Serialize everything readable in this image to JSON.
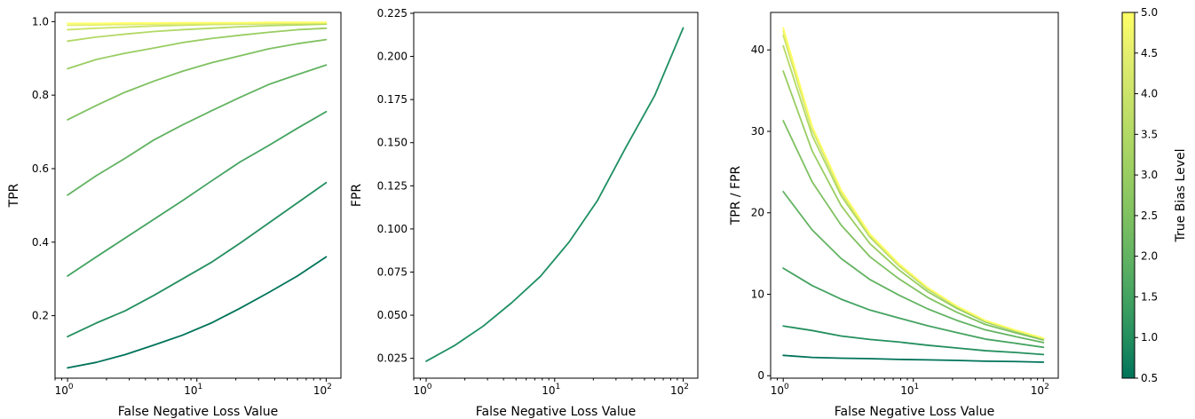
{
  "figure": {
    "colorbar": {
      "label": "True Bias Level",
      "min": 0.5,
      "max": 5.0,
      "ticks": [
        0.5,
        1.0,
        1.5,
        2.0,
        2.5,
        3.0,
        3.5,
        4.0,
        4.5,
        5.0
      ],
      "tick_labels": [
        "0.5",
        "1.0",
        "1.5",
        "2.0",
        "2.5",
        "3.0",
        "3.5",
        "4.0",
        "4.5",
        "5.0"
      ],
      "colormap": [
        "#00735a",
        "#248f5f",
        "#44a361",
        "#63b362",
        "#7fc161",
        "#99cd62",
        "#b2d965",
        "#cbe36a",
        "#e4ee6f",
        "#ffff66"
      ]
    }
  },
  "chart_data": [
    {
      "type": "line",
      "xscale": "log",
      "xlabel": "False Negative Loss Value",
      "ylabel": "TPR",
      "xlim": [
        0.8,
        130
      ],
      "ylim": [
        0.03,
        1.025
      ],
      "x": [
        1,
        1.668,
        2.783,
        4.642,
        7.743,
        12.92,
        21.54,
        35.94,
        59.95,
        100
      ],
      "x_ticks": [
        1,
        10,
        100
      ],
      "x_tick_labels": [
        "10^0",
        "10^1",
        "10^2"
      ],
      "y_ticks": [
        0.2,
        0.4,
        0.6,
        0.8,
        1.0
      ],
      "y_tick_labels": [
        "0.2",
        "0.4",
        "0.6",
        "0.8",
        "1.0"
      ],
      "series": [
        {
          "bias": 0.5,
          "values": [
            0.058,
            0.073,
            0.094,
            0.12,
            0.147,
            0.18,
            0.22,
            0.263,
            0.308,
            0.36
          ]
        },
        {
          "bias": 1.0,
          "values": [
            0.143,
            0.18,
            0.213,
            0.255,
            0.3,
            0.345,
            0.397,
            0.452,
            0.507,
            0.562
          ]
        },
        {
          "bias": 1.5,
          "values": [
            0.308,
            0.36,
            0.411,
            0.462,
            0.513,
            0.566,
            0.618,
            0.663,
            0.71,
            0.755
          ]
        },
        {
          "bias": 2.0,
          "values": [
            0.528,
            0.581,
            0.628,
            0.678,
            0.719,
            0.757,
            0.794,
            0.829,
            0.856,
            0.882
          ]
        },
        {
          "bias": 2.5,
          "values": [
            0.733,
            0.772,
            0.808,
            0.838,
            0.865,
            0.888,
            0.907,
            0.926,
            0.94,
            0.951
          ]
        },
        {
          "bias": 3.0,
          "values": [
            0.872,
            0.897,
            0.914,
            0.928,
            0.943,
            0.954,
            0.963,
            0.971,
            0.978,
            0.982
          ]
        },
        {
          "bias": 3.5,
          "values": [
            0.947,
            0.958,
            0.966,
            0.973,
            0.978,
            0.982,
            0.986,
            0.989,
            0.991,
            0.993
          ]
        },
        {
          "bias": 4.0,
          "values": [
            0.978,
            0.982,
            0.985,
            0.988,
            0.99,
            0.992,
            0.993,
            0.994,
            0.995,
            0.996
          ]
        },
        {
          "bias": 4.5,
          "values": [
            0.99,
            0.991,
            0.992,
            0.993,
            0.994,
            0.995,
            0.995,
            0.996,
            0.996,
            0.997
          ]
        },
        {
          "bias": 5.0,
          "values": [
            0.995,
            0.995,
            0.996,
            0.996,
            0.997,
            0.997,
            0.997,
            0.998,
            0.998,
            0.998
          ]
        }
      ]
    },
    {
      "type": "line",
      "xscale": "log",
      "xlabel": "False Negative Loss Value",
      "ylabel": "FPR",
      "xlim": [
        0.8,
        130
      ],
      "ylim": [
        0.0135,
        0.2255
      ],
      "x": [
        1,
        1.668,
        2.783,
        4.642,
        7.743,
        12.92,
        21.54,
        35.94,
        59.95,
        100
      ],
      "x_ticks": [
        1,
        10,
        100
      ],
      "x_tick_labels": [
        "10^0",
        "10^1",
        "10^2"
      ],
      "y_ticks": [
        0.025,
        0.05,
        0.075,
        0.1,
        0.125,
        0.15,
        0.175,
        0.2,
        0.225
      ],
      "y_tick_labels": [
        "0.025",
        "0.050",
        "0.075",
        "0.100",
        "0.125",
        "0.150",
        "0.175",
        "0.200",
        "0.225"
      ],
      "series": [
        {
          "values": [
            0.0233,
            0.0325,
            0.0437,
            0.0573,
            0.0725,
            0.0923,
            0.1165,
            0.1475,
            0.1772,
            0.2165
          ]
        }
      ]
    },
    {
      "type": "line",
      "xscale": "log",
      "xlabel": "False Negative Loss Value",
      "ylabel": "TPR / FPR",
      "xlim": [
        0.8,
        130
      ],
      "ylim": [
        -0.3,
        44.6
      ],
      "x": [
        1,
        1.668,
        2.783,
        4.642,
        7.743,
        12.92,
        21.54,
        35.94,
        59.95,
        100
      ],
      "x_ticks": [
        1,
        10,
        100
      ],
      "x_tick_labels": [
        "10^0",
        "10^1",
        "10^2"
      ],
      "y_ticks": [
        0,
        10,
        20,
        30,
        40
      ],
      "y_tick_labels": [
        "0",
        "10",
        "20",
        "30",
        "40"
      ],
      "series": [
        {
          "bias": 0.5,
          "values": [
            2.5,
            2.25,
            2.15,
            2.1,
            2.0,
            1.95,
            1.88,
            1.78,
            1.74,
            1.66
          ]
        },
        {
          "bias": 1.0,
          "values": [
            6.1,
            5.55,
            4.88,
            4.45,
            4.14,
            3.74,
            3.41,
            3.07,
            2.86,
            2.6
          ]
        },
        {
          "bias": 1.5,
          "values": [
            13.2,
            11.07,
            9.4,
            8.06,
            7.08,
            6.13,
            5.3,
            4.49,
            4.0,
            3.49
          ]
        },
        {
          "bias": 2.0,
          "values": [
            22.6,
            17.9,
            14.4,
            11.8,
            9.9,
            8.2,
            6.8,
            5.62,
            4.83,
            4.07
          ]
        },
        {
          "bias": 2.5,
          "values": [
            31.3,
            23.8,
            18.5,
            14.6,
            11.9,
            9.6,
            7.8,
            6.28,
            5.3,
            4.39
          ]
        },
        {
          "bias": 3.0,
          "values": [
            37.4,
            27.6,
            20.9,
            16.2,
            13.0,
            10.3,
            8.27,
            6.58,
            5.52,
            4.54
          ]
        },
        {
          "bias": 3.5,
          "values": [
            40.5,
            29.5,
            22.1,
            17.0,
            13.5,
            10.6,
            8.47,
            6.7,
            5.59,
            4.59
          ]
        },
        {
          "bias": 4.0,
          "values": [
            41.8,
            30.2,
            22.5,
            17.2,
            13.6,
            10.75,
            8.53,
            6.74,
            5.62,
            4.6
          ]
        },
        {
          "bias": 4.5,
          "values": [
            42.3,
            30.5,
            22.7,
            17.3,
            13.7,
            10.8,
            8.54,
            6.75,
            5.62,
            4.61
          ]
        },
        {
          "bias": 5.0,
          "values": [
            42.7,
            30.6,
            22.8,
            17.4,
            13.75,
            10.8,
            8.56,
            6.77,
            5.63,
            4.61
          ]
        }
      ]
    }
  ]
}
